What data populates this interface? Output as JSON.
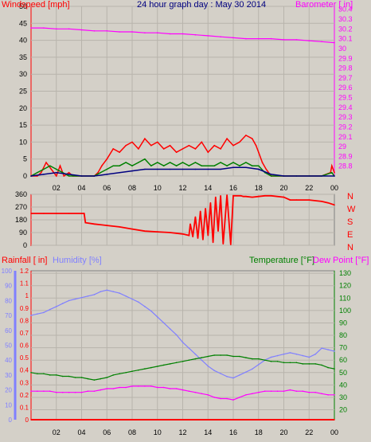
{
  "chart_data": [
    {
      "type": "line",
      "title": "24 hour graph day : May 30 2014",
      "left_axis_label": "Windspeed [mph]",
      "right_axis_label": "Barometer [ in]",
      "x_ticks": [
        "02",
        "04",
        "06",
        "08",
        "10",
        "12",
        "14",
        "16",
        "18",
        "20",
        "22",
        "00"
      ],
      "left_ticks": [
        "0",
        "5",
        "10",
        "15",
        "20",
        "25",
        "30",
        "35",
        "40",
        "45",
        "50"
      ],
      "left_ylim": [
        0,
        50
      ],
      "right_ticks": [
        "28.8",
        "28.9",
        "29",
        "29.1",
        "29.2",
        "29.3",
        "29.4",
        "29.5",
        "29.6",
        "29.7",
        "29.8",
        "29.9",
        "30",
        "30.1",
        "30.2",
        "30.3",
        "30.4"
      ],
      "right_ylim": [
        28.7,
        30.43
      ],
      "x_range_hours": [
        0,
        24
      ],
      "grid": true,
      "series": [
        {
          "name": "Barometer [ in]",
          "axis": "right",
          "color": "#ff00ff",
          "x": [
            0,
            1,
            2,
            3,
            4,
            5,
            6,
            7,
            8,
            9,
            10,
            11,
            12,
            13,
            14,
            15,
            16,
            17,
            18,
            19,
            20,
            21,
            22,
            23,
            24
          ],
          "y": [
            30.21,
            30.21,
            30.2,
            30.2,
            30.19,
            30.18,
            30.18,
            30.17,
            30.17,
            30.16,
            30.16,
            30.15,
            30.15,
            30.14,
            30.13,
            30.12,
            30.11,
            30.1,
            30.1,
            30.1,
            30.09,
            30.09,
            30.08,
            30.07,
            30.06
          ]
        },
        {
          "name": "Gust",
          "axis": "left",
          "color": "#ff0000",
          "x": [
            0,
            0.5,
            0.8,
            1.2,
            1.6,
            2,
            2.3,
            2.6,
            3,
            3.3,
            3.6,
            4,
            5,
            5.3,
            5.6,
            6,
            6.5,
            7,
            7.5,
            8,
            8.5,
            9,
            9.5,
            10,
            10.5,
            11,
            11.5,
            12,
            12.5,
            13,
            13.5,
            14,
            14.5,
            15,
            15.5,
            16,
            16.5,
            17,
            17.5,
            17.8,
            18,
            18.3,
            18.6,
            19,
            20,
            21,
            22,
            23,
            23.7,
            23.8,
            24
          ],
          "y": [
            0,
            0,
            1,
            4,
            2,
            0,
            3,
            0,
            1,
            0,
            0,
            0,
            0,
            1,
            3,
            5,
            8,
            7,
            9,
            10,
            8,
            11,
            9,
            10,
            8,
            9,
            7,
            8,
            9,
            8,
            10,
            7,
            9,
            8,
            11,
            9,
            10,
            12,
            11,
            9,
            7,
            4,
            2,
            0,
            0,
            0,
            0,
            0,
            1,
            3,
            1
          ]
        },
        {
          "name": "Wind speed (average)",
          "axis": "left",
          "color": "#008000",
          "x": [
            0,
            0.5,
            1,
            1.5,
            2,
            2.5,
            3,
            4,
            5,
            5.5,
            6,
            6.5,
            7,
            7.5,
            8,
            8.5,
            9,
            9.5,
            10,
            10.5,
            11,
            11.5,
            12,
            12.5,
            13,
            13.5,
            14,
            14.5,
            15,
            15.5,
            16,
            16.5,
            17,
            17.5,
            18,
            18.5,
            19,
            20,
            21,
            22,
            23,
            23.8,
            24
          ],
          "y": [
            0,
            1,
            2,
            3,
            2,
            1,
            0,
            0,
            0,
            1,
            2,
            3,
            3,
            4,
            3,
            4,
            5,
            3,
            4,
            3,
            4,
            3,
            4,
            3,
            4,
            3,
            3,
            3,
            4,
            3,
            4,
            3,
            4,
            3,
            3,
            1,
            0,
            0,
            0,
            0,
            0,
            1,
            0
          ]
        },
        {
          "name": "Wind speed (trend)",
          "axis": "left",
          "color": "#000080",
          "x": [
            0,
            1,
            2,
            3,
            4,
            5,
            6,
            7,
            8,
            9,
            10,
            11,
            12,
            13,
            14,
            15,
            16,
            17,
            18,
            19,
            20,
            24
          ],
          "y": [
            0,
            0.5,
            1,
            0.5,
            0,
            0,
            0.5,
            1,
            1.5,
            2,
            2,
            2,
            2,
            2,
            2,
            2,
            2.5,
            2.5,
            2,
            0.5,
            0,
            0
          ]
        }
      ]
    },
    {
      "type": "line",
      "title": "",
      "left_ticks": [
        "0",
        "90",
        "180",
        "270",
        "360"
      ],
      "left_ylim": [
        0,
        360
      ],
      "right_labels": [
        "N",
        "W",
        "S",
        "E",
        "N"
      ],
      "x_range_hours": [
        0,
        24
      ],
      "grid": true,
      "series": [
        {
          "name": "Wind direction",
          "axis": "left",
          "color": "#ff0000",
          "x": [
            0,
            1,
            2,
            3,
            4,
            4.2,
            4.3,
            5,
            6,
            7,
            8,
            9,
            10,
            11,
            12,
            12.5,
            12.6,
            12.8,
            13,
            13.2,
            13.4,
            13.6,
            13.8,
            14,
            14.2,
            14.4,
            14.6,
            14.8,
            15,
            15.2,
            15.5,
            15.8,
            16,
            16.3,
            16.6,
            16.8,
            17,
            17.5,
            18,
            18.5,
            19,
            20,
            20.5,
            21,
            22,
            23,
            23.5,
            24
          ],
          "y": [
            225,
            225,
            225,
            225,
            225,
            225,
            160,
            150,
            140,
            130,
            115,
            100,
            95,
            90,
            80,
            70,
            150,
            60,
            200,
            50,
            240,
            40,
            260,
            70,
            300,
            20,
            340,
            100,
            350,
            10,
            355,
            5,
            350,
            350,
            350,
            345,
            345,
            340,
            345,
            350,
            350,
            340,
            320,
            320,
            320,
            310,
            300,
            285
          ]
        }
      ]
    },
    {
      "type": "line",
      "title": "",
      "labels": {
        "rainfall": "Rainfall [ in]",
        "humidity": "Humidity [%]",
        "temperature": "Temperature [°F]",
        "dew_point": "Dew Point [°F]"
      },
      "x_ticks": [
        "02",
        "04",
        "06",
        "08",
        "10",
        "12",
        "14",
        "16",
        "18",
        "20",
        "22",
        "00"
      ],
      "rain_ticks": [
        "0",
        "0.1",
        "0.2",
        "0.3",
        "0.4",
        "0.5",
        "0.6",
        "0.7",
        "0.8",
        "0.9",
        "1",
        "1.1",
        "1.2"
      ],
      "rain_ylim": [
        0,
        1.2
      ],
      "humidity_ticks": [
        "0",
        "10",
        "20",
        "30",
        "40",
        "50",
        "60",
        "70",
        "80",
        "90",
        "100"
      ],
      "humidity_ylim": [
        0,
        100
      ],
      "temp_ticks": [
        "20",
        "30",
        "40",
        "50",
        "60",
        "70",
        "80",
        "90",
        "100",
        "110",
        "120",
        "130"
      ],
      "temp_ylim": [
        12,
        132
      ],
      "x_range_hours": [
        0,
        24
      ],
      "grid": true,
      "series": [
        {
          "name": "Rainfall [ in]",
          "axis": "rain",
          "color": "#ff0000",
          "x": [
            0,
            24
          ],
          "y": [
            0,
            0
          ]
        },
        {
          "name": "Humidity [%]",
          "axis": "humidity",
          "color": "#8080ff",
          "x": [
            0,
            0.5,
            1,
            1.5,
            2,
            2.5,
            3,
            3.5,
            4,
            4.5,
            5,
            5.5,
            6,
            6.5,
            7,
            7.5,
            8,
            8.5,
            9,
            9.5,
            10,
            10.5,
            11,
            11.5,
            12,
            12.5,
            13,
            13.5,
            14,
            14.5,
            15,
            15.5,
            16,
            16.5,
            17,
            17.5,
            18,
            18.5,
            19,
            19.5,
            20,
            20.5,
            21,
            21.5,
            22,
            22.5,
            23,
            23.5,
            24
          ],
          "y": [
            70,
            71,
            72,
            74,
            76,
            78,
            80,
            81,
            82,
            83,
            84,
            86,
            87,
            86,
            85,
            83,
            81,
            79,
            76,
            73,
            69,
            65,
            61,
            57,
            52,
            48,
            44,
            40,
            36,
            33,
            31,
            29,
            28,
            30,
            32,
            34,
            37,
            40,
            42,
            43,
            44,
            45,
            44,
            43,
            42,
            44,
            48,
            47,
            46
          ]
        },
        {
          "name": "Temperature [°F]",
          "axis": "temp",
          "color": "#008000",
          "x": [
            0,
            0.5,
            1,
            1.5,
            2,
            2.5,
            3,
            3.5,
            4,
            4.5,
            5,
            5.5,
            6,
            6.5,
            7,
            7.5,
            8,
            8.5,
            9,
            9.5,
            10,
            10.5,
            11,
            11.5,
            12,
            12.5,
            13,
            13.5,
            14,
            14.5,
            15,
            15.5,
            16,
            16.5,
            17,
            17.5,
            18,
            18.5,
            19,
            19.5,
            20,
            20.5,
            21,
            21.5,
            22,
            22.5,
            23,
            23.5,
            24
          ],
          "y": [
            50,
            49,
            49,
            48,
            48,
            47,
            47,
            46,
            46,
            45,
            44,
            45,
            46,
            48,
            49,
            50,
            51,
            52,
            53,
            54,
            55,
            56,
            57,
            58,
            59,
            60,
            61,
            62,
            63,
            64,
            64,
            64,
            63,
            63,
            62,
            61,
            61,
            60,
            59,
            59,
            58,
            58,
            58,
            57,
            57,
            57,
            56,
            54,
            53
          ]
        },
        {
          "name": "Dew Point [°F]",
          "axis": "temp",
          "color": "#ff00ff",
          "x": [
            0,
            0.5,
            1,
            1.5,
            2,
            2.5,
            3,
            3.5,
            4,
            4.5,
            5,
            5.5,
            6,
            6.5,
            7,
            7.5,
            8,
            8.5,
            9,
            9.5,
            10,
            10.5,
            11,
            11.5,
            12,
            12.5,
            13,
            13.5,
            14,
            14.5,
            15,
            15.5,
            16,
            16.5,
            17,
            17.5,
            18,
            18.5,
            19,
            19.5,
            20,
            20.5,
            21,
            21.5,
            22,
            22.5,
            23,
            23.5,
            24
          ],
          "y": [
            35,
            35,
            35,
            35,
            34,
            34,
            34,
            34,
            34,
            35,
            35,
            36,
            37,
            37,
            38,
            38,
            39,
            39,
            39,
            39,
            38,
            38,
            37,
            37,
            36,
            35,
            34,
            33,
            32,
            30,
            29,
            29,
            28,
            30,
            32,
            33,
            34,
            35,
            35,
            35,
            35,
            36,
            35,
            35,
            34,
            34,
            33,
            32,
            32
          ]
        }
      ]
    }
  ]
}
